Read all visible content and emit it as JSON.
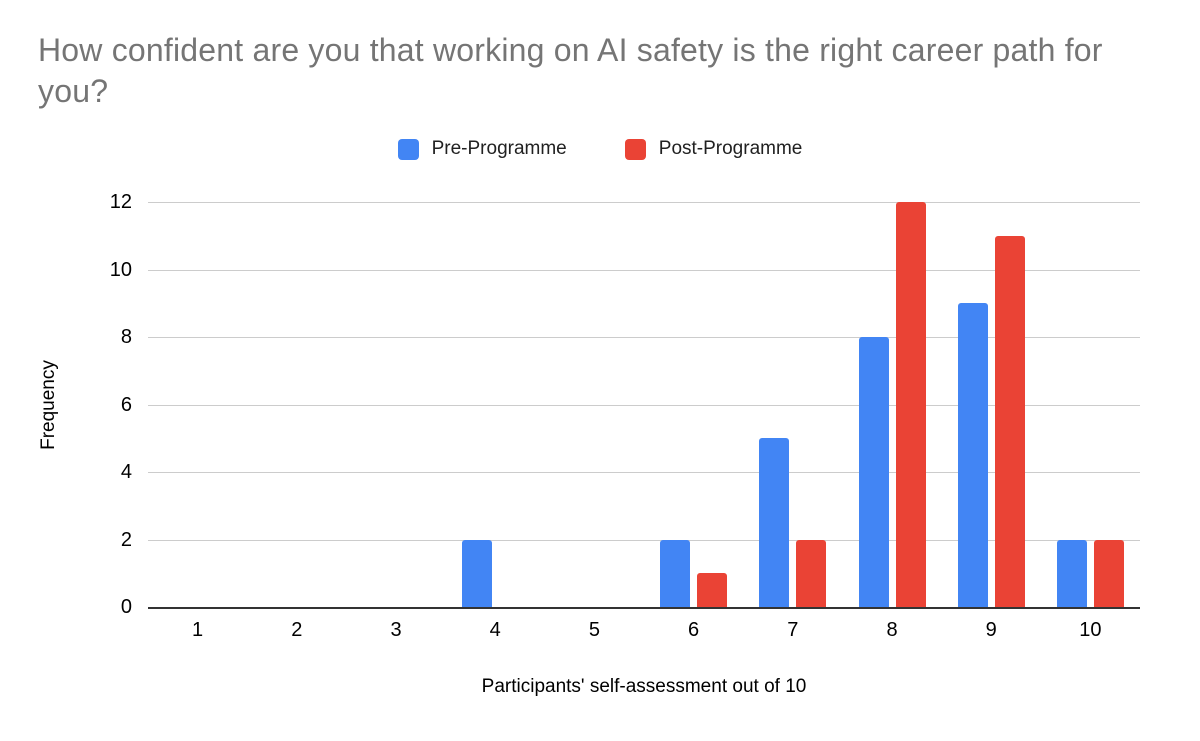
{
  "chart_data": {
    "type": "bar",
    "title": "How confident are you that working on AI safety is the right career path for you?",
    "categories": [
      "1",
      "2",
      "3",
      "4",
      "5",
      "6",
      "7",
      "8",
      "9",
      "10"
    ],
    "series": [
      {
        "name": "Pre-Programme",
        "color": "#4285F4",
        "values": [
          0,
          0,
          0,
          2,
          0,
          2,
          5,
          8,
          9,
          2
        ]
      },
      {
        "name": "Post-Programme",
        "color": "#EA4335",
        "values": [
          0,
          0,
          0,
          0,
          0,
          1,
          2,
          12,
          11,
          2
        ]
      }
    ],
    "xlabel": "Participants' self-assessment out of 10",
    "ylabel": "Frequency",
    "ylim": [
      0,
      12
    ],
    "ytick_step": 2,
    "yticks": [
      0,
      2,
      4,
      6,
      8,
      10,
      12
    ],
    "grid": true,
    "legend_position": "top",
    "colors": {
      "title_text": "#757575",
      "axis_text": "#000000",
      "gridline": "#cccccc",
      "baseline": "#333333",
      "background": "#ffffff"
    }
  }
}
